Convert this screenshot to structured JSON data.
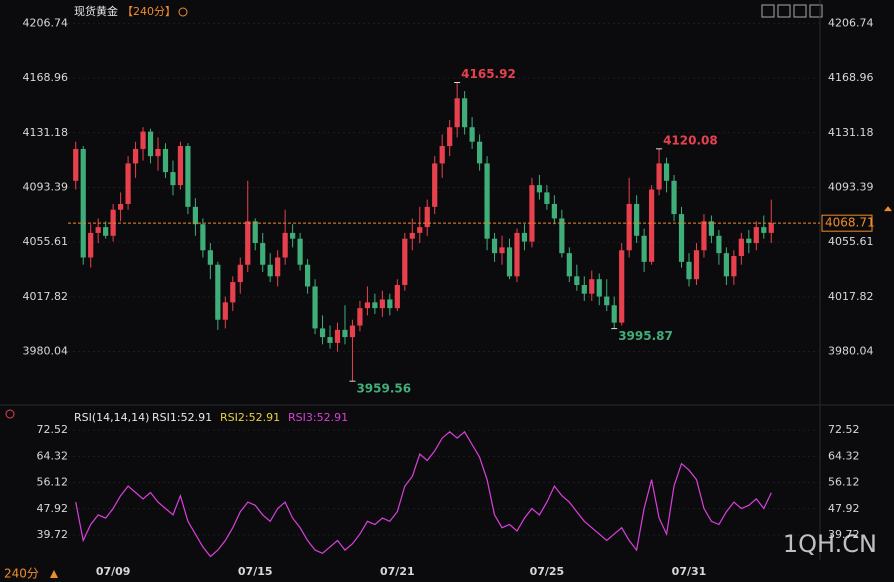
{
  "header": {
    "title": "现货黄金",
    "period": "【240分】"
  },
  "chart_data": {
    "type": "candlestick",
    "colors": {
      "up": "#e8414e",
      "down": "#3fae79"
    },
    "categories": [
      null,
      null,
      null,
      null,
      null,
      "07/09",
      null,
      null,
      null,
      null,
      null,
      null,
      null,
      null,
      null,
      null,
      null,
      null,
      null,
      null,
      null,
      null,
      null,
      null,
      "07/15",
      null,
      null,
      null,
      null,
      null,
      null,
      null,
      null,
      null,
      null,
      null,
      null,
      null,
      null,
      null,
      null,
      null,
      null,
      "07/21",
      null,
      null,
      null,
      null,
      null,
      null,
      null,
      null,
      null,
      null,
      null,
      null,
      null,
      null,
      null,
      null,
      null,
      null,
      null,
      "07/25",
      null,
      null,
      null,
      null,
      null,
      null,
      null,
      null,
      null,
      null,
      null,
      null,
      null,
      null,
      null,
      null,
      null,
      null,
      "07/31",
      null,
      null,
      null,
      null,
      null,
      null,
      null,
      null,
      null,
      null,
      null
    ],
    "candles": [
      [
        4098,
        4125,
        4092,
        4120
      ],
      [
        4120,
        4122,
        4040,
        4045
      ],
      [
        4045,
        4068,
        4038,
        4062
      ],
      [
        4062,
        4072,
        4055,
        4066
      ],
      [
        4066,
        4070,
        4058,
        4060
      ],
      [
        4060,
        4082,
        4056,
        4078
      ],
      [
        4078,
        4090,
        4070,
        4082
      ],
      [
        4082,
        4115,
        4078,
        4110
      ],
      [
        4110,
        4125,
        4100,
        4120
      ],
      [
        4120,
        4135,
        4112,
        4132
      ],
      [
        4132,
        4134,
        4110,
        4115
      ],
      [
        4115,
        4128,
        4105,
        4120
      ],
      [
        4120,
        4124,
        4100,
        4104
      ],
      [
        4104,
        4112,
        4088,
        4095
      ],
      [
        4095,
        4125,
        4092,
        4122
      ],
      [
        4122,
        4124,
        4075,
        4080
      ],
      [
        4080,
        4086,
        4060,
        4068
      ],
      [
        4068,
        4072,
        4045,
        4050
      ],
      [
        4050,
        4055,
        4030,
        4040
      ],
      [
        4040,
        4042,
        3995,
        4002
      ],
      [
        4002,
        4018,
        3996,
        4014
      ],
      [
        4014,
        4032,
        4008,
        4028
      ],
      [
        4028,
        4045,
        4020,
        4040
      ],
      [
        4040,
        4098,
        4035,
        4070
      ],
      [
        4070,
        4072,
        4050,
        4055
      ],
      [
        4055,
        4062,
        4035,
        4040
      ],
      [
        4040,
        4048,
        4028,
        4032
      ],
      [
        4032,
        4050,
        4025,
        4045
      ],
      [
        4045,
        4078,
        4040,
        4062
      ],
      [
        4062,
        4068,
        4052,
        4058
      ],
      [
        4058,
        4062,
        4036,
        4040
      ],
      [
        4040,
        4044,
        4020,
        4025
      ],
      [
        4025,
        4030,
        3992,
        3996
      ],
      [
        3996,
        4005,
        3985,
        3990
      ],
      [
        3990,
        3998,
        3982,
        3986
      ],
      [
        3986,
        4000,
        3980,
        3995
      ],
      [
        3995,
        4012,
        3985,
        3990
      ],
      [
        3990,
        4002,
        3959.56,
        3998
      ],
      [
        3998,
        4015,
        3994,
        4010
      ],
      [
        4010,
        4025,
        4005,
        4014
      ],
      [
        4014,
        4020,
        4006,
        4010
      ],
      [
        4010,
        4022,
        4004,
        4016
      ],
      [
        4016,
        4020,
        4005,
        4010
      ],
      [
        4010,
        4030,
        4008,
        4026
      ],
      [
        4026,
        4062,
        4022,
        4058
      ],
      [
        4058,
        4072,
        4050,
        4062
      ],
      [
        4062,
        4080,
        4055,
        4066
      ],
      [
        4066,
        4085,
        4060,
        4080
      ],
      [
        4080,
        4115,
        4075,
        4110
      ],
      [
        4110,
        4130,
        4100,
        4122
      ],
      [
        4122,
        4140,
        4115,
        4135
      ],
      [
        4135,
        4165.92,
        4128,
        4155
      ],
      [
        4155,
        4160,
        4130,
        4135
      ],
      [
        4135,
        4142,
        4120,
        4125
      ],
      [
        4125,
        4130,
        4105,
        4110
      ],
      [
        4110,
        4115,
        4050,
        4058
      ],
      [
        4058,
        4062,
        4042,
        4048
      ],
      [
        4048,
        4060,
        4040,
        4052
      ],
      [
        4052,
        4058,
        4030,
        4032
      ],
      [
        4032,
        4065,
        4028,
        4062
      ],
      [
        4062,
        4068,
        4050,
        4056
      ],
      [
        4056,
        4100,
        4052,
        4095
      ],
      [
        4095,
        4102,
        4085,
        4090
      ],
      [
        4090,
        4095,
        4078,
        4082
      ],
      [
        4082,
        4088,
        4068,
        4072
      ],
      [
        4072,
        4078,
        4045,
        4048
      ],
      [
        4048,
        4052,
        4028,
        4032
      ],
      [
        4032,
        4040,
        4022,
        4026
      ],
      [
        4026,
        4032,
        4015,
        4020
      ],
      [
        4020,
        4036,
        4015,
        4030
      ],
      [
        4030,
        4034,
        4012,
        4018
      ],
      [
        4018,
        4030,
        4008,
        4012
      ],
      [
        4012,
        4018,
        3995.87,
        4000
      ],
      [
        4000,
        4055,
        3998,
        4050
      ],
      [
        4050,
        4100,
        4045,
        4082
      ],
      [
        4082,
        4088,
        4055,
        4060
      ],
      [
        4060,
        4065,
        4035,
        4042
      ],
      [
        4042,
        4095,
        4040,
        4092
      ],
      [
        4092,
        4120.08,
        4088,
        4110
      ],
      [
        4110,
        4114,
        4090,
        4098
      ],
      [
        4098,
        4102,
        4070,
        4075
      ],
      [
        4075,
        4080,
        4038,
        4042
      ],
      [
        4042,
        4048,
        4025,
        4030
      ],
      [
        4030,
        4055,
        4026,
        4050
      ],
      [
        4050,
        4075,
        4045,
        4070
      ],
      [
        4070,
        4074,
        4055,
        4060
      ],
      [
        4060,
        4064,
        4040,
        4048
      ],
      [
        4048,
        4052,
        4026,
        4032
      ],
      [
        4032,
        4050,
        4026,
        4046
      ],
      [
        4046,
        4062,
        4040,
        4058
      ],
      [
        4058,
        4064,
        4048,
        4055
      ],
      [
        4055,
        4070,
        4050,
        4066
      ],
      [
        4066,
        4074,
        4058,
        4062
      ],
      [
        4062,
        4085,
        4055,
        4068.71
      ]
    ],
    "ylim": [
      3950,
      4216
    ],
    "yticks": [
      4206.74,
      4168.96,
      4131.18,
      4093.39,
      4055.61,
      4017.82,
      3980.04
    ],
    "grid": true,
    "annotations": [
      4165.92,
      4120.08,
      3959.56,
      3995.87
    ],
    "last_price": 4068.71,
    "rsi": {
      "legend": [
        "RSI(14,14,14)",
        "RSI1:52.91",
        "RSI2:52.91",
        "RSI3:52.91"
      ],
      "legend_colors": [
        "#e6e6e6",
        "#e6e6e6",
        "#e8d23c",
        "#d940d9"
      ],
      "color": "#d940d9",
      "values": [
        50,
        38,
        43,
        46,
        45,
        48,
        52,
        55,
        53,
        51,
        53,
        50,
        48,
        46,
        52,
        44,
        40,
        36,
        33,
        35,
        38,
        42,
        47,
        50,
        49,
        46,
        44,
        48,
        50,
        45,
        42,
        38,
        35,
        34,
        36,
        38,
        35,
        37,
        40,
        44,
        43,
        45,
        44,
        47,
        55,
        58,
        65,
        63,
        66,
        70,
        72,
        70,
        72,
        68,
        64,
        57,
        46,
        42,
        43,
        41,
        45,
        48,
        46,
        50,
        55,
        52,
        50,
        47,
        44,
        42,
        40,
        38,
        40,
        42,
        38,
        35,
        48,
        57,
        45,
        40,
        55,
        62,
        60,
        57,
        48,
        44,
        43,
        47,
        50,
        48,
        49,
        51,
        48,
        52.91
      ],
      "ylim": [
        31.9,
        76.3
      ],
      "yticks": [
        72.52,
        64.32,
        56.12,
        47.92,
        39.72
      ]
    }
  },
  "footer": {
    "period": "240分",
    "watermark": "1QH.CN"
  }
}
